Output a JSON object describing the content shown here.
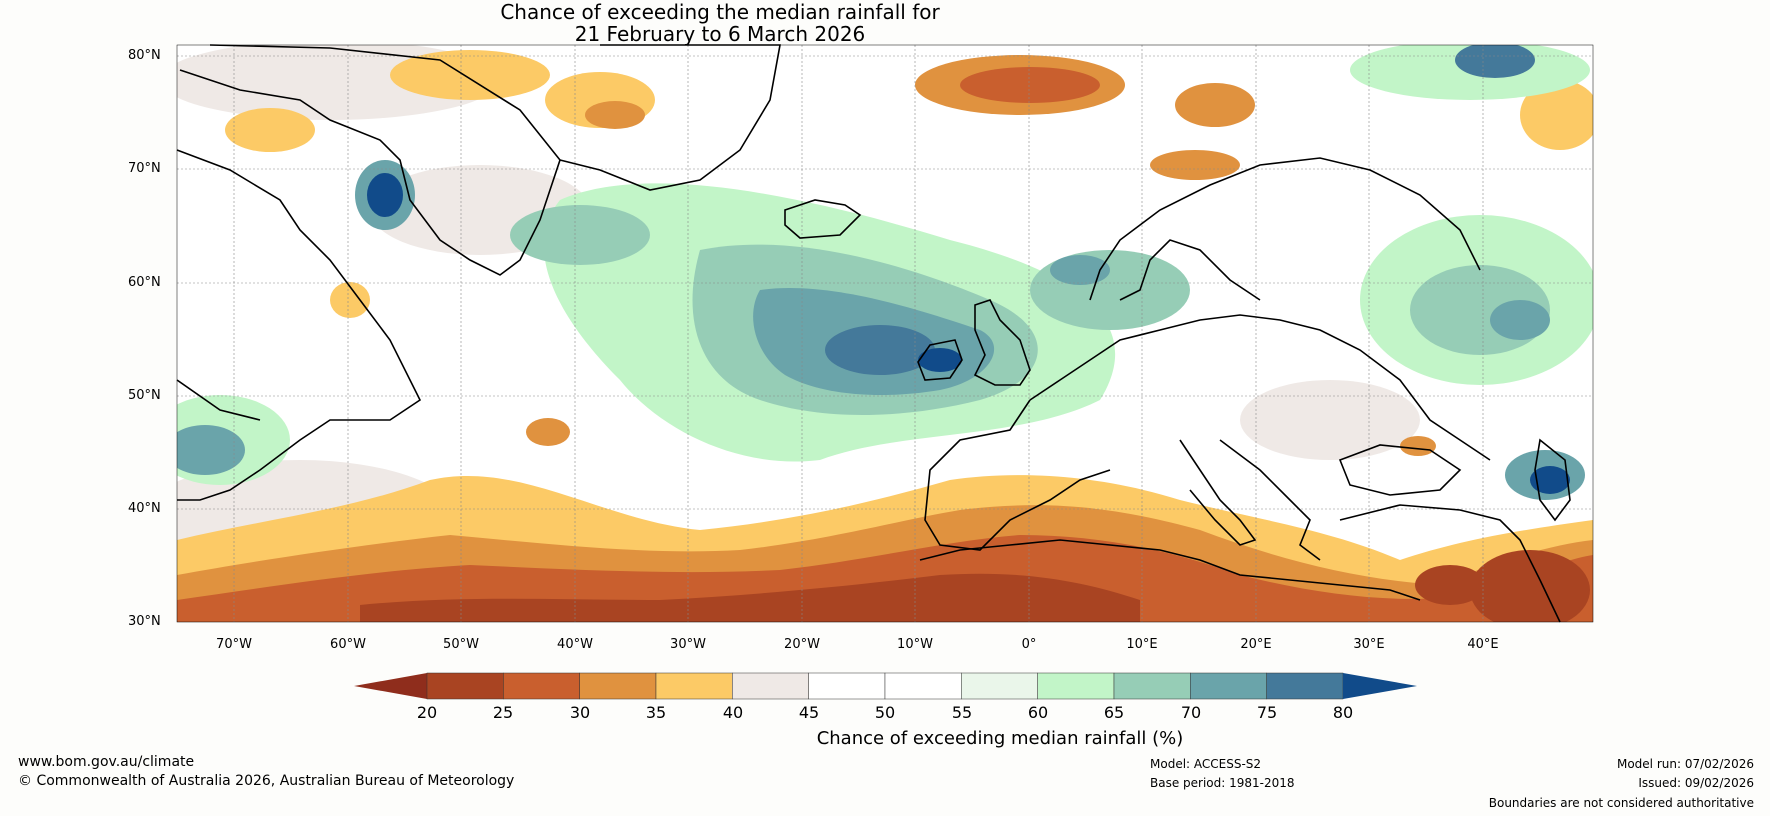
{
  "title": {
    "line1": "Chance of exceeding the median rainfall for",
    "line2": "21 February to 6 March 2026"
  },
  "lat_labels": [
    "80°N",
    "70°N",
    "60°N",
    "50°N",
    "40°N",
    "30°N"
  ],
  "lon_labels": [
    "70°W",
    "60°W",
    "50°W",
    "40°W",
    "30°W",
    "20°W",
    "10°W",
    "0°",
    "10°E",
    "20°E",
    "30°E",
    "40°E"
  ],
  "colorbar": {
    "ticks": [
      "20",
      "25",
      "30",
      "35",
      "40",
      "45",
      "50",
      "55",
      "60",
      "65",
      "70",
      "75",
      "80"
    ],
    "colors": [
      "#a94422",
      "#c95f2e",
      "#e0923f",
      "#fcca66",
      "#efe9e6",
      "#ffffff",
      "#ffffff",
      "#eaf6ea",
      "#c2f5c8",
      "#96cdb6",
      "#6aa4aa",
      "#44799a",
      "#114b8a"
    ],
    "under_color": "#8f2d1c",
    "over_color": "#114b8a",
    "label": "Chance of exceeding median rainfall (%)"
  },
  "footer": {
    "website": "www.bom.gov.au/climate",
    "copyright": "© Commonwealth of Australia 2026, Australian Bureau of Meteorology",
    "model": "Model: ACCESS-S2",
    "base_period": "Base period: 1981-2018",
    "model_run": "Model run: 07/02/2026",
    "issued": "Issued: 09/02/2026",
    "disclaimer": "Boundaries are not considered authoritative"
  }
}
